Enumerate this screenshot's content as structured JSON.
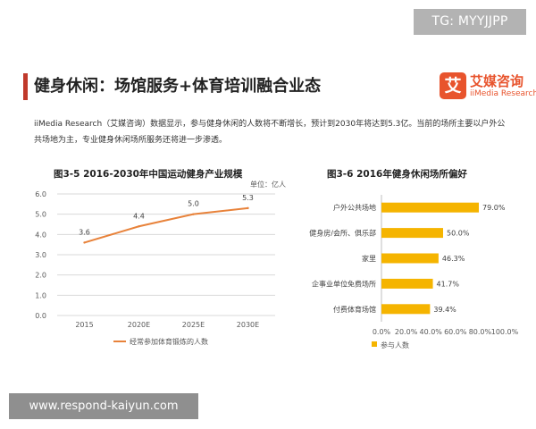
{
  "watermark_top": "TG: MYYJJPP",
  "watermark_bottom": "www.respond-kaiyun.com",
  "header": {
    "title": "健身休闲：场馆服务+体育培训融合业态",
    "brand_icon_char": "艾",
    "brand_cn": "艾媒咨询",
    "brand_en": "iiMedia Research",
    "brand_color": "#e8542d",
    "accent_bar_color": "#c0392b"
  },
  "intro": "iiMedia Research（艾媒咨询）数据显示，参与健身休闲的人数将不断增长，预计到2030年将达到5.3亿。当前的场所主要以户外公共场地为主，专业健身休闲场所服务还将进一步渗透。",
  "chart_data": [
    {
      "type": "line",
      "title": "图3-5 2016-2030年中国运动健身产业规模",
      "unit_label": "单位：亿人",
      "categories": [
        "2015",
        "2020E",
        "2025E",
        "2030E"
      ],
      "series": [
        {
          "name": "经常参加体育锻炼的人数",
          "values": [
            3.6,
            4.4,
            5.0,
            5.3
          ],
          "color": "#e8823a"
        }
      ],
      "data_labels": [
        "3.6",
        "4.4",
        "5.0",
        "5.3"
      ],
      "yticks": [
        "0.0",
        "1.0",
        "2.0",
        "3.0",
        "4.0",
        "5.0",
        "6.0"
      ],
      "ylim": [
        0,
        6
      ],
      "grid": true,
      "legend_position": "bottom"
    },
    {
      "type": "bar",
      "orientation": "horizontal",
      "title": "图3-6 2016年健身休闲场所偏好",
      "categories": [
        "户外公共场地",
        "健身房/会所、俱乐部",
        "家里",
        "企事业单位免费场所",
        "付费体育场馆"
      ],
      "values": [
        79.0,
        50.0,
        46.3,
        41.7,
        39.4
      ],
      "data_labels": [
        "79.0%",
        "50.0%",
        "46.3%",
        "41.7%",
        "39.4%"
      ],
      "xticks": [
        "0.0%",
        "20.0%",
        "40.0%",
        "60.0%",
        "80.0%",
        "100.0%"
      ],
      "xlim": [
        0,
        100
      ],
      "series_name": "参与人数",
      "color": "#f5b400",
      "grid": false,
      "legend_position": "bottom"
    }
  ]
}
